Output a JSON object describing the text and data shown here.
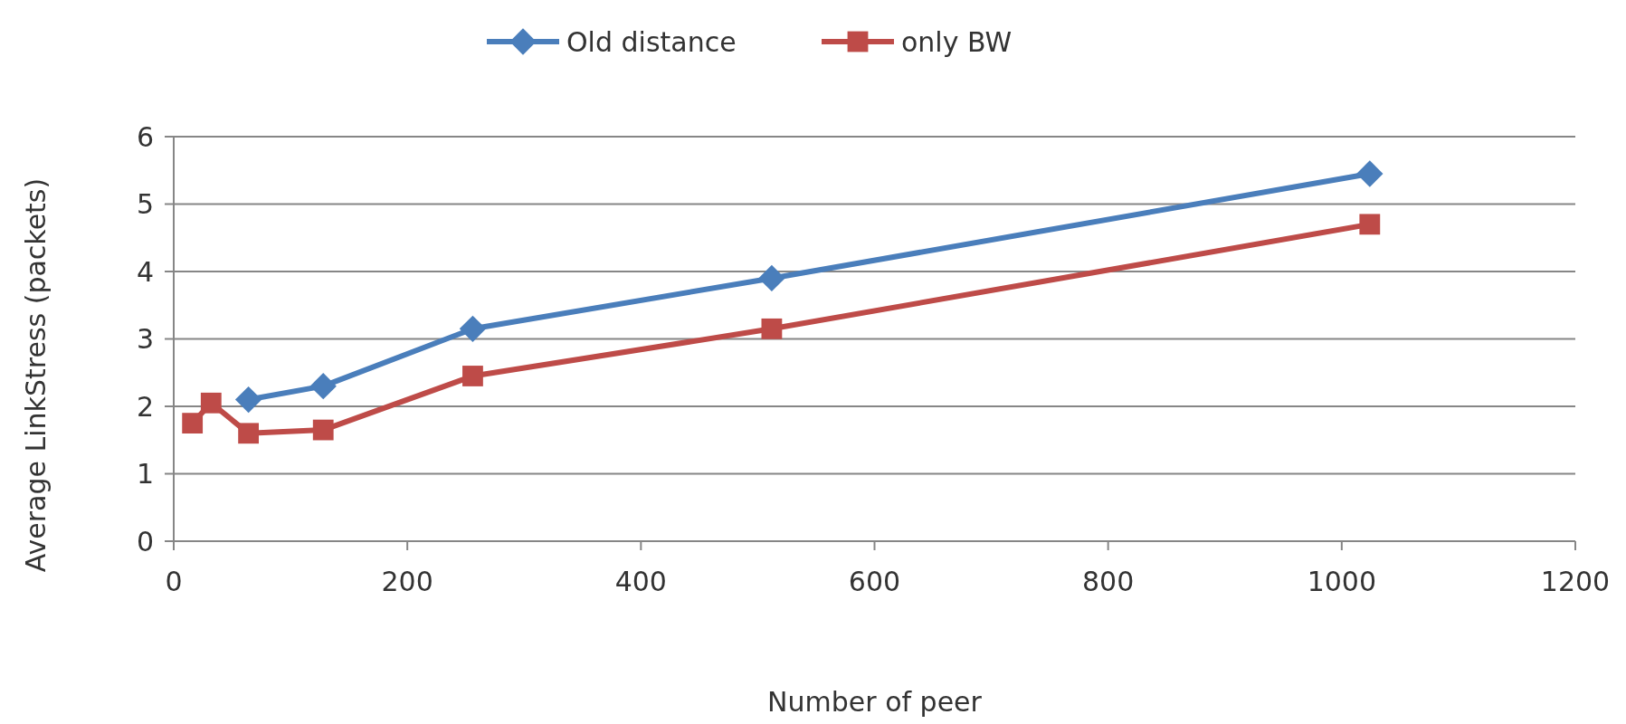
{
  "chart_data": {
    "type": "line",
    "xlabel": "Number of peer",
    "ylabel": "Average LinkStress (packets)",
    "x": [
      16,
      32,
      64,
      128,
      256,
      512,
      1024
    ],
    "series": [
      {
        "name": "Old distance",
        "color": "#4a7ebb",
        "marker": "diamond",
        "values": [
          null,
          null,
          2.1,
          2.3,
          3.15,
          3.9,
          5.45
        ]
      },
      {
        "name": "only BW",
        "color": "#be4b48",
        "marker": "square",
        "values": [
          1.75,
          2.05,
          1.6,
          1.65,
          2.45,
          3.15,
          4.7
        ]
      }
    ],
    "xlim": [
      0,
      1200
    ],
    "xticks": [
      0,
      200,
      400,
      600,
      800,
      1000,
      1200
    ],
    "ylim": [
      0,
      6
    ],
    "yticks": [
      0,
      1,
      2,
      3,
      4,
      5,
      6
    ],
    "grid": "y",
    "legend": "top",
    "line_style": "solid"
  }
}
